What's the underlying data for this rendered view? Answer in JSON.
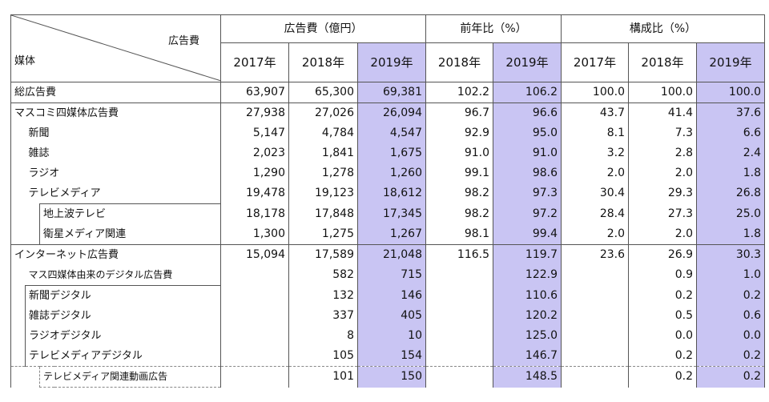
{
  "header": {
    "corner_top": "広告費",
    "corner_bottom": "媒体",
    "groups": [
      "広告費（億円）",
      "前年比（%）",
      "構成比（%）"
    ],
    "years": [
      "2017年",
      "2018年",
      "2019年",
      "2018年",
      "2019年",
      "2017年",
      "2018年",
      "2019年"
    ]
  },
  "rows": [
    {
      "label": "総広告費",
      "v": [
        "63,907",
        "65,300",
        "69,381",
        "102.2",
        "106.2",
        "100.0",
        "100.0",
        "100.0"
      ]
    },
    {
      "label": "マスコミ四媒体広告費",
      "v": [
        "27,938",
        "27,026",
        "26,094",
        "96.7",
        "96.6",
        "43.7",
        "41.4",
        "37.6"
      ]
    },
    {
      "label": "新聞",
      "v": [
        "5,147",
        "4,784",
        "4,547",
        "92.9",
        "95.0",
        "8.1",
        "7.3",
        "6.6"
      ]
    },
    {
      "label": "雑誌",
      "v": [
        "2,023",
        "1,841",
        "1,675",
        "91.0",
        "91.0",
        "3.2",
        "2.8",
        "2.4"
      ]
    },
    {
      "label": "ラジオ",
      "v": [
        "1,290",
        "1,278",
        "1,260",
        "99.1",
        "98.6",
        "2.0",
        "2.0",
        "1.8"
      ]
    },
    {
      "label": "テレビメディア",
      "v": [
        "19,478",
        "19,123",
        "18,612",
        "98.2",
        "97.3",
        "30.4",
        "29.3",
        "26.8"
      ]
    },
    {
      "label": "地上波テレビ",
      "v": [
        "18,178",
        "17,848",
        "17,345",
        "98.2",
        "97.2",
        "28.4",
        "27.3",
        "25.0"
      ]
    },
    {
      "label": "衛星メディア関連",
      "v": [
        "1,300",
        "1,275",
        "1,267",
        "98.1",
        "99.4",
        "2.0",
        "2.0",
        "1.8"
      ]
    },
    {
      "label": "インターネット広告費",
      "v": [
        "15,094",
        "17,589",
        "21,048",
        "116.5",
        "119.7",
        "23.6",
        "26.9",
        "30.3"
      ]
    },
    {
      "label": "マス四媒体由来のデジタル広告費",
      "v": [
        "",
        "582",
        "715",
        "",
        "122.9",
        "",
        "0.9",
        "1.0"
      ]
    },
    {
      "label": "新聞デジタル",
      "v": [
        "",
        "132",
        "146",
        "",
        "110.6",
        "",
        "0.2",
        "0.2"
      ]
    },
    {
      "label": "雑誌デジタル",
      "v": [
        "",
        "337",
        "405",
        "",
        "120.2",
        "",
        "0.5",
        "0.6"
      ]
    },
    {
      "label": "ラジオデジタル",
      "v": [
        "",
        "8",
        "10",
        "",
        "125.0",
        "",
        "0.0",
        "0.0"
      ]
    },
    {
      "label": "テレビメディアデジタル",
      "v": [
        "",
        "105",
        "154",
        "",
        "146.7",
        "",
        "0.2",
        "0.2"
      ]
    },
    {
      "label": "テレビメディア関連動画広告",
      "v": [
        "",
        "101",
        "150",
        "",
        "148.5",
        "",
        "0.2",
        "0.2"
      ]
    }
  ],
  "colors": {
    "highlight": "#c9c5f3",
    "border": "#555555"
  }
}
